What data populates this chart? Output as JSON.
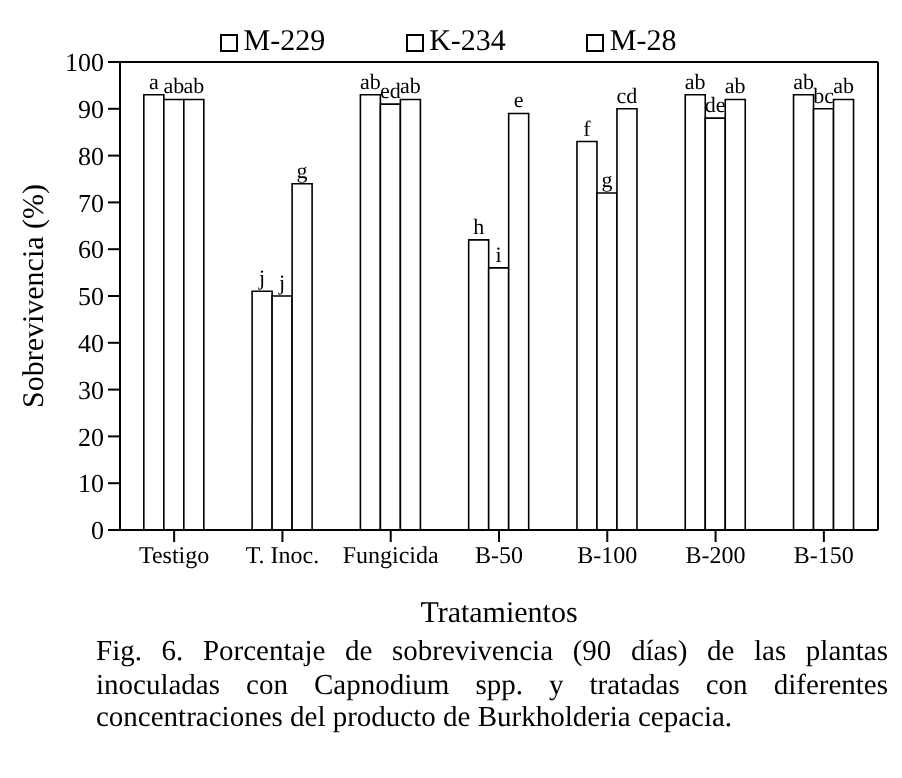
{
  "chart_data": {
    "type": "bar",
    "categories": [
      "Testigo",
      "T. Inoc.",
      "Fungicida",
      "B-50",
      "B-100",
      "B-200",
      "B-150"
    ],
    "series": [
      {
        "name": "M-229",
        "color": "#ffffff",
        "values": [
          93,
          51,
          93,
          62,
          83,
          93,
          93
        ],
        "value_labels": [
          "a",
          "j",
          "ab",
          "h",
          "f",
          "ab",
          "ab"
        ]
      },
      {
        "name": "K-234",
        "color": "#ffffff",
        "values": [
          92,
          50,
          91,
          56,
          72,
          88,
          90
        ],
        "value_labels": [
          "ab",
          "j",
          "ed",
          "i",
          "g",
          "de",
          "bc"
        ]
      },
      {
        "name": "M-28",
        "color": "#ffffff",
        "values": [
          92,
          74,
          92,
          89,
          90,
          92,
          92
        ],
        "value_labels": [
          "ab",
          "g",
          "ab",
          "e",
          "cd",
          "ab",
          "ab"
        ]
      }
    ],
    "ylabel": "Sobrevivencia (%)",
    "xlabel": "Tratamientos",
    "ylim": [
      0,
      100
    ],
    "yticks": [
      0,
      10,
      20,
      30,
      40,
      50,
      60,
      70,
      80,
      90,
      100
    ],
    "grid": false,
    "legend": "top",
    "annotations": [
      "Fig. 6. Porcentaje de sobrevivencia (90 días) de las plantas inoculadas con Capnodium spp. y tratadas con diferentes concentraciones del producto de Burkholderia cepacia."
    ]
  }
}
